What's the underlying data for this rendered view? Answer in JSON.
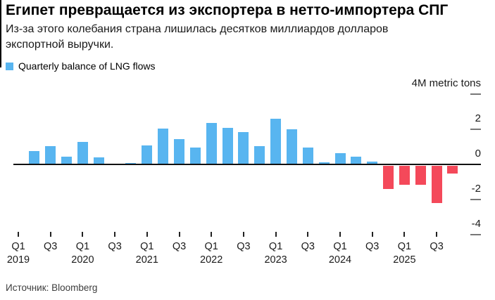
{
  "header": {
    "title": "Египет превращается из экспортера в нетто-импортера СПГ",
    "subtitle": "Из-за этого колебания страна лишилась десятков миллиардов долларов экспортной выручки."
  },
  "legend": {
    "label": "Quarterly balance of LNG flows",
    "swatch_color": "#58B5F0"
  },
  "source": {
    "label": "Источник: Bloomberg"
  },
  "chart_data": {
    "type": "bar",
    "title": "Quarterly balance of LNG flows",
    "unit": "M metric tons",
    "categories": [
      "Q1 2019",
      "Q2 2019",
      "Q3 2019",
      "Q4 2019",
      "Q1 2020",
      "Q2 2020",
      "Q3 2020",
      "Q4 2020",
      "Q1 2021",
      "Q2 2021",
      "Q3 2021",
      "Q4 2021",
      "Q1 2022",
      "Q2 2022",
      "Q3 2022",
      "Q4 2022",
      "Q1 2023",
      "Q2 2023",
      "Q3 2023",
      "Q4 2023",
      "Q1 2024",
      "Q2 2024",
      "Q3 2024",
      "Q4 2024",
      "Q1 2025",
      "Q2 2025",
      "Q3 2025",
      "Q4 2025"
    ],
    "values": [
      0,
      0.75,
      1.05,
      0.45,
      1.3,
      0.4,
      0,
      0.1,
      1.1,
      2.05,
      1.45,
      0.95,
      2.35,
      2.1,
      1.85,
      1.05,
      2.6,
      2.0,
      0.95,
      0.12,
      0.65,
      0.43,
      0.18,
      -1.35,
      -1.1,
      -1.1,
      -2.15,
      -0.45
    ],
    "ylim": [
      -4,
      4
    ],
    "yticks": [
      {
        "value": 4,
        "label": "4M metric tons"
      },
      {
        "value": 2,
        "label": "2"
      },
      {
        "value": 0,
        "label": "0"
      },
      {
        "value": -2,
        "label": "-2"
      },
      {
        "value": -4,
        "label": "-4"
      }
    ],
    "xticks": [
      {
        "index": 0,
        "quarter": "Q1",
        "year": "2019"
      },
      {
        "index": 2,
        "quarter": "Q3",
        "year": ""
      },
      {
        "index": 4,
        "quarter": "Q1",
        "year": "2020"
      },
      {
        "index": 6,
        "quarter": "Q3",
        "year": ""
      },
      {
        "index": 8,
        "quarter": "Q1",
        "year": "2021"
      },
      {
        "index": 10,
        "quarter": "Q3",
        "year": ""
      },
      {
        "index": 12,
        "quarter": "Q1",
        "year": "2022"
      },
      {
        "index": 14,
        "quarter": "Q3",
        "year": ""
      },
      {
        "index": 16,
        "quarter": "Q1",
        "year": "2023"
      },
      {
        "index": 18,
        "quarter": "Q3",
        "year": ""
      },
      {
        "index": 20,
        "quarter": "Q1",
        "year": "2024"
      },
      {
        "index": 22,
        "quarter": "Q3",
        "year": ""
      },
      {
        "index": 24,
        "quarter": "Q1",
        "year": "2025"
      },
      {
        "index": 26,
        "quarter": "Q3",
        "year": ""
      }
    ],
    "positive_color": "#58B5F0",
    "negative_color": "#F4495A",
    "axis_line_color": "#111111",
    "tick_dash_color": "#777777",
    "legend_position": "top-left",
    "grid": false
  }
}
